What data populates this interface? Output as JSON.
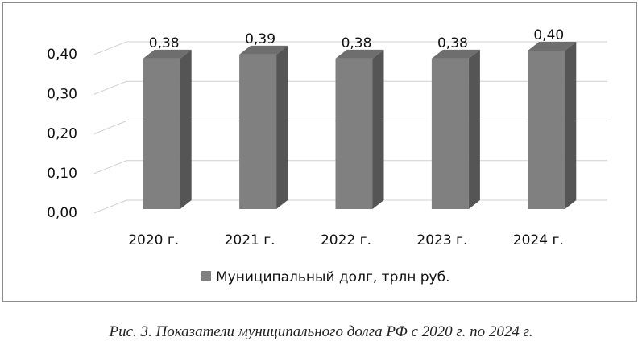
{
  "chart_data": {
    "type": "bar",
    "categories": [
      "2020 г.",
      "2021 г.",
      "2022 г.",
      "2023 г.",
      "2024 г."
    ],
    "series": [
      {
        "name": "Муниципальный долг, трлн руб.",
        "values": [
          0.38,
          0.39,
          0.38,
          0.38,
          0.4
        ]
      }
    ],
    "data_labels": [
      "0,38",
      "0,39",
      "0,38",
      "0,38",
      "0,40"
    ],
    "y_ticks": [
      {
        "value": 0.0,
        "label": "0,00"
      },
      {
        "value": 0.1,
        "label": "0,10"
      },
      {
        "value": 0.2,
        "label": "0,20"
      },
      {
        "value": 0.3,
        "label": "0,30"
      },
      {
        "value": 0.4,
        "label": "0,40"
      }
    ],
    "ylim": [
      0,
      0.4
    ],
    "grid": true,
    "style": "3d-column",
    "legend_position": "bottom",
    "colors": {
      "bar_front": "#808080",
      "bar_side": "#555555",
      "bar_top": "#6e6e6e",
      "gridline": "#d0d0d0"
    }
  },
  "caption": "Рис. 3. Показатели муниципального долга РФ с 2020 г. по 2024 г."
}
